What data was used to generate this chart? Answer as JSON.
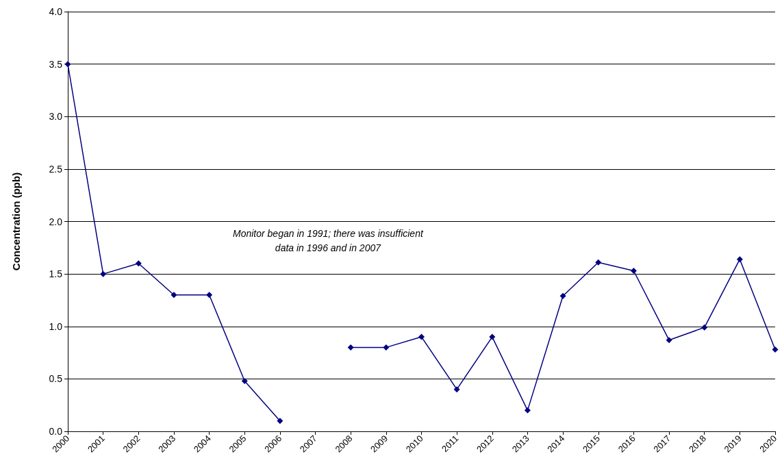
{
  "chart_data": {
    "type": "line",
    "ylabel": "Concentration (ppb)",
    "categories": [
      "2000",
      "2001",
      "2002",
      "2003",
      "2004",
      "2005",
      "2006",
      "2007",
      "2008",
      "2009",
      "2010",
      "2011",
      "2012",
      "2013",
      "2014",
      "2015",
      "2016",
      "2017",
      "2018",
      "2019",
      "2020"
    ],
    "series": [
      {
        "color": "#000080",
        "values": [
          3.5,
          1.5,
          1.6,
          1.3,
          1.3,
          0.48,
          0.1,
          null,
          0.8,
          0.8,
          0.9,
          0.4,
          0.9,
          0.2,
          1.29,
          1.61,
          1.53,
          0.87,
          0.99,
          1.64,
          0.78
        ]
      }
    ],
    "ylim": [
      0,
      4
    ],
    "yticks": [
      {
        "value": 0,
        "label": "0.0"
      },
      {
        "value": 0.5,
        "label": "0.5"
      },
      {
        "value": 1,
        "label": "1.0"
      },
      {
        "value": 1.5,
        "label": "1.5"
      },
      {
        "value": 2,
        "label": "2.0"
      },
      {
        "value": 2.5,
        "label": "2.5"
      },
      {
        "value": 3,
        "label": "3.0"
      },
      {
        "value": 3.5,
        "label": "3.5"
      },
      {
        "value": 4,
        "label": "4.0"
      }
    ],
    "grid": "y",
    "marker": "diamond",
    "line_style": "solid",
    "annotations": [
      "Monitor began in 1991; there was insufficient\ndata in 1996 and in 2007"
    ]
  }
}
